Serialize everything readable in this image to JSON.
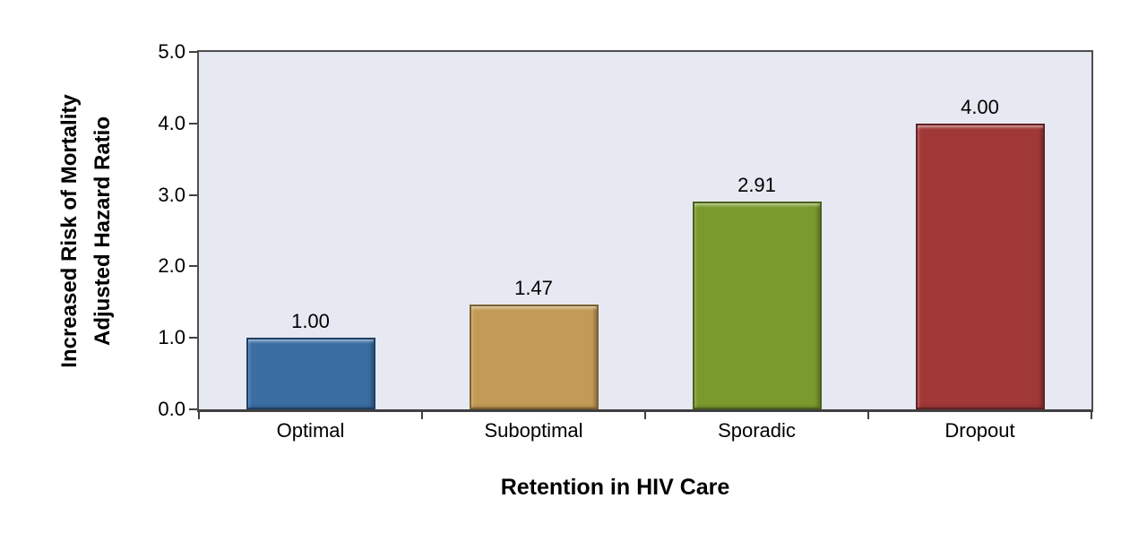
{
  "chart_data": {
    "type": "bar",
    "title": "",
    "xlabel": "Retention in HIV Care",
    "ylabel_line1": "Increased Risk of Mortality",
    "ylabel_line2": "Adjusted Hazard Ratio",
    "categories": [
      "Optimal",
      "Suboptimal",
      "Sporadic",
      "Dropout"
    ],
    "values": [
      1.0,
      1.47,
      2.91,
      4.0
    ],
    "value_labels": [
      "1.00",
      "1.47",
      "2.91",
      "4.00"
    ],
    "ylim": [
      0,
      5
    ],
    "ytick_values": [
      5,
      4,
      3,
      2,
      1,
      0
    ],
    "ytick_labels": [
      "5.0",
      "4.0",
      "3.0",
      "2.0",
      "1.0",
      "0.0"
    ],
    "grid": false,
    "legend": "none",
    "plot_background": "#E6E9F1",
    "axis_color": "#404040",
    "bar_fill_colors": [
      "#3A6EA3",
      "#C29B57",
      "#7A9A2E",
      "#A03838"
    ],
    "bar_border_colors": [
      "#1F4066",
      "#7D6230",
      "#4C611B",
      "#642121"
    ]
  }
}
